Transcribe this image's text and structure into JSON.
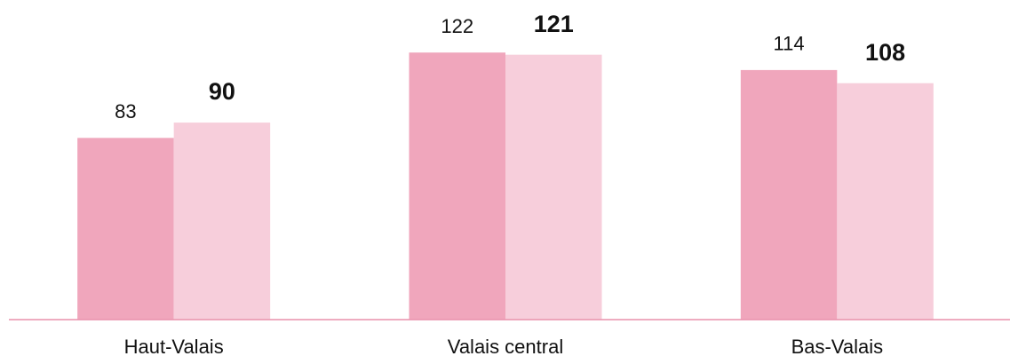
{
  "chart_data": {
    "type": "bar",
    "categories": [
      "Haut-Valais",
      "Valais central",
      "Bas-Valais"
    ],
    "series": [
      {
        "color": "#f0a6bc",
        "values": [
          83,
          122,
          114
        ]
      },
      {
        "color": "#f7cedb",
        "values": [
          90,
          121,
          108
        ]
      }
    ],
    "ylim": [
      0,
      146
    ],
    "grid": false
  }
}
